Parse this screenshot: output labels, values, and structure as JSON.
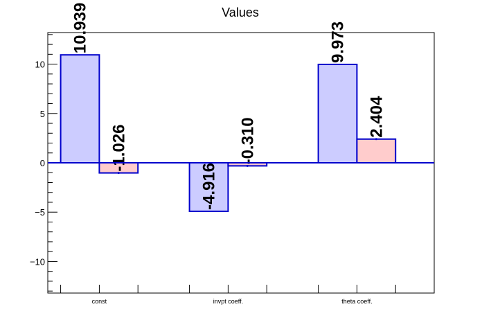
{
  "chart_data": {
    "type": "bar",
    "title": "Values",
    "categories": [
      "const",
      "invpt coeff.",
      "theta coeff."
    ],
    "series": [
      {
        "values": [
          10.939,
          -4.916,
          9.973
        ],
        "labels": [
          "10.939",
          "-4.916",
          "9.973"
        ],
        "errors": [
          0,
          0,
          0
        ],
        "fill": "#ccccff",
        "stroke": "#0000cc"
      },
      {
        "values": [
          -1.026,
          -0.31,
          2.404
        ],
        "labels": [
          "-1.026",
          "-0.310",
          "2.404"
        ],
        "errors": [
          0.1,
          0.1,
          0.1
        ],
        "fill": "#ffcccc",
        "stroke": "#0000cc"
      }
    ],
    "ylim": [
      -13.2,
      13.2
    ],
    "yticks": [
      -10,
      -5,
      0,
      5,
      10
    ],
    "ytick_labels": [
      "−10",
      "−5",
      "0",
      "5",
      "10"
    ],
    "xlabel": "",
    "ylabel": "",
    "grid": false,
    "legend": "none"
  }
}
